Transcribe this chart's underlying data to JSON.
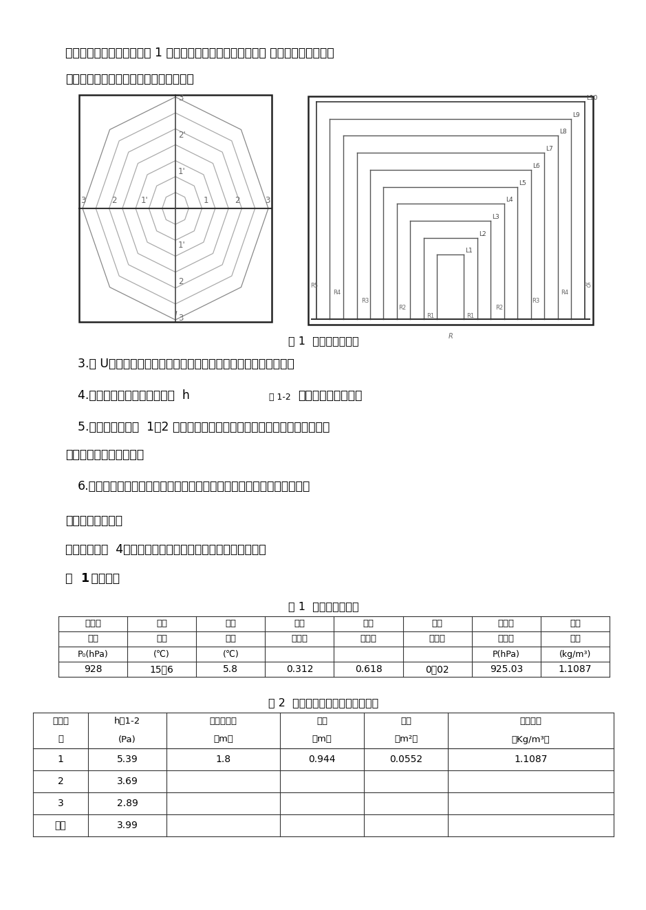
{
  "page_bg": "#ffffff",
  "top_text_line1": "积平分线上布置测点，如图 1 所示为三等面积环的测点布置。 如速度场纵横对称，",
  "top_text_line2": "也可以只在纵向（或横向）上布置测点。",
  "fig_caption": "图 1  测点布置分布图",
  "step3": "3.将 U型压差计和皮托管用胶皮管接连接，检查无误后开机测定。",
  "step4a": "4.当水柱计稳定时，同时读取  h",
  "step4b": "测 1-2",
  "step4c": "记入实验报告书中。",
  "step5a": "5.用皮尺量出测点  1、2 之间的距离，根据管道直径，计算出管道面积和周",
  "step5b": "长，记入实验报告书中。",
  "step6": "6.根据上述数据计算风阻、等积孔、摩擦阻力系数，记入实验报告书中。",
  "section5": "五、实验数据记录",
  "intro_text": "本实验共测了  4组数据，同学们有选择性的抄其中一组即可，",
  "group_text_pre": "第 ",
  "group_text_num": "1",
  "group_text_post": " 组数据：",
  "table1_title": "表 1  空气参数记录表",
  "t1_h1": [
    "原始大",
    "干球",
    "湿球",
    "温度",
    "示度",
    "补充",
    "大气压",
    "空气"
  ],
  "t1_h2": [
    "气压",
    "温度",
    "温度",
    "修正值",
    "修正值",
    "修正值",
    "修正值",
    "密度"
  ],
  "t1_h3": [
    "P0(hPa)",
    "(℃)",
    "(℃)",
    "",
    "",
    "",
    "P(hPa)",
    "(kg/m3)"
  ],
  "t1_data": [
    "928",
    "15．6",
    "5.8",
    "0.312",
    "0.618",
    "0．02",
    "925.03",
    "1.1087"
  ],
  "table2_title": "表 2  管道参数与压差计读数记录表",
  "t2_h": [
    "测量次\n数",
    "h测1-2(Pa)",
    "测点间距离（m）",
    "周长（m）",
    "断面（m²）",
    "空气密度（Kg/m³）"
  ],
  "t2_rows": [
    [
      "1",
      "5.39",
      "1.8",
      "0.944",
      "0.0552",
      "1.1087"
    ],
    [
      "2",
      "3.69",
      "",
      "",
      "",
      ""
    ],
    [
      "3",
      "2.89",
      "",
      "",
      "",
      ""
    ],
    [
      "平均",
      "3.99",
      "",
      "",
      "",
      ""
    ]
  ],
  "lm": 85,
  "text_color": "#000000",
  "gray": "#888888",
  "dark": "#444444"
}
